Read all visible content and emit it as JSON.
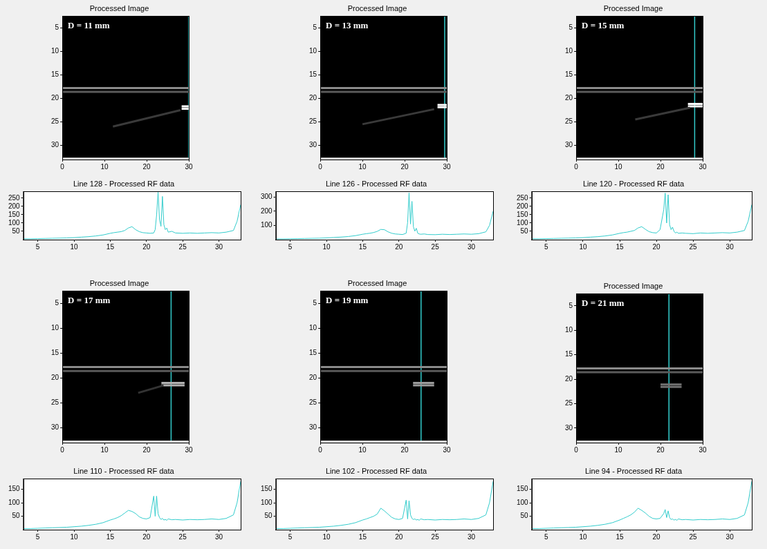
{
  "chart_data": [
    {
      "type": "image",
      "title": "Processed Image",
      "annotation": "D = 11 mm",
      "xlim": [
        0,
        30
      ],
      "xticks": [
        0,
        10,
        20,
        30
      ],
      "ylim": [
        33,
        2.5
      ],
      "yticks": [
        5,
        10,
        15,
        20,
        25,
        30
      ],
      "series": [
        {
          "x": [
            0,
            30
          ],
          "values": [
            17.8,
            17.8
          ],
          "color": "#8a8a8a"
        },
        {
          "x": [
            0,
            30
          ],
          "values": [
            18.6,
            18.6
          ],
          "color": "#5a5a5a"
        },
        {
          "x": [
            12,
            28
          ],
          "values": [
            26,
            22.5
          ],
          "color": "#3a3a3a"
        },
        {
          "x": [
            28.3,
            30
          ],
          "values": [
            21.7,
            21.7
          ],
          "color": "#ffffff"
        },
        {
          "x": [
            28.3,
            30
          ],
          "values": [
            22.2,
            22.2
          ],
          "color": "#ffffff"
        },
        {
          "x": [
            0,
            30
          ],
          "values": [
            32.8,
            32.8
          ],
          "color": "#e0e0e0"
        },
        {
          "x": [
            30,
            30
          ],
          "values": [
            2.5,
            33
          ],
          "color": "#33cccc"
        }
      ]
    },
    {
      "type": "image",
      "title": "Processed Image",
      "annotation": "D = 13 mm",
      "xlim": [
        0,
        30
      ],
      "xticks": [
        0,
        10,
        20,
        30
      ],
      "ylim": [
        33,
        2.5
      ],
      "yticks": [
        5,
        10,
        15,
        20,
        25,
        30
      ],
      "series": [
        {
          "x": [
            0,
            30
          ],
          "values": [
            17.8,
            17.8
          ],
          "color": "#8a8a8a"
        },
        {
          "x": [
            0,
            30
          ],
          "values": [
            18.6,
            18.6
          ],
          "color": "#5a5a5a"
        },
        {
          "x": [
            10,
            27
          ],
          "values": [
            25.5,
            22.3
          ],
          "color": "#3a3a3a"
        },
        {
          "x": [
            27.8,
            30
          ],
          "values": [
            21.4,
            21.4
          ],
          "color": "#ffffff"
        },
        {
          "x": [
            27.8,
            30
          ],
          "values": [
            21.9,
            21.9
          ],
          "color": "#ffffff"
        },
        {
          "x": [
            0,
            30
          ],
          "values": [
            32.8,
            32.8
          ],
          "color": "#e0e0e0"
        },
        {
          "x": [
            29.5,
            29.5
          ],
          "values": [
            2.5,
            33
          ],
          "color": "#33cccc"
        }
      ]
    },
    {
      "type": "image",
      "title": "Processed Image",
      "annotation": "D = 15 mm",
      "xlim": [
        0,
        30
      ],
      "xticks": [
        0,
        10,
        20,
        30
      ],
      "ylim": [
        33,
        2.5
      ],
      "yticks": [
        5,
        10,
        15,
        20,
        25,
        30
      ],
      "series": [
        {
          "x": [
            0,
            30
          ],
          "values": [
            17.8,
            17.8
          ],
          "color": "#8a8a8a"
        },
        {
          "x": [
            0,
            30
          ],
          "values": [
            18.6,
            18.6
          ],
          "color": "#5a5a5a"
        },
        {
          "x": [
            14,
            27
          ],
          "values": [
            24.5,
            22
          ],
          "color": "#3a3a3a"
        },
        {
          "x": [
            26.5,
            30
          ],
          "values": [
            21.2,
            21.2
          ],
          "color": "#ffffff"
        },
        {
          "x": [
            26.5,
            30
          ],
          "values": [
            21.7,
            21.7
          ],
          "color": "#ffffff"
        },
        {
          "x": [
            0,
            30
          ],
          "values": [
            32.8,
            32.8
          ],
          "color": "#e0e0e0"
        },
        {
          "x": [
            28.1,
            28.1
          ],
          "values": [
            2.5,
            33
          ],
          "color": "#33cccc"
        }
      ]
    },
    {
      "type": "line",
      "title": "Line 128 - Processed RF data",
      "color": "#33cccc",
      "xlim": [
        3,
        33
      ],
      "xticks": [
        5,
        10,
        15,
        20,
        25,
        30
      ],
      "ylim": [
        0,
        290
      ],
      "yticks": [
        50,
        100,
        150,
        200,
        250
      ],
      "x": [
        3,
        4,
        5,
        6,
        7,
        8,
        9,
        10,
        11,
        12,
        13,
        14,
        15,
        15.5,
        16,
        16.5,
        17,
        17.5,
        18,
        18.5,
        19,
        19.5,
        20,
        20.5,
        21,
        21.2,
        21.4,
        21.6,
        21.8,
        22,
        22.2,
        22.4,
        22.6,
        22.8,
        23,
        23.5,
        24,
        25,
        26,
        27,
        28,
        29,
        30,
        31,
        32,
        32.5,
        33
      ],
      "values": [
        5,
        5,
        6,
        7,
        8,
        9,
        10,
        12,
        15,
        18,
        22,
        28,
        38,
        42,
        45,
        48,
        55,
        70,
        78,
        60,
        48,
        42,
        40,
        38,
        40,
        60,
        150,
        285,
        120,
        80,
        260,
        90,
        60,
        70,
        45,
        50,
        40,
        38,
        40,
        38,
        40,
        42,
        40,
        45,
        55,
        110,
        210
      ]
    },
    {
      "type": "line",
      "title": "Line 126 - Processed RF data",
      "color": "#33cccc",
      "xlim": [
        3,
        33
      ],
      "xticks": [
        5,
        10,
        15,
        20,
        25,
        30
      ],
      "ylim": [
        0,
        340
      ],
      "yticks": [
        100,
        200,
        300
      ],
      "x": [
        3,
        4,
        5,
        6,
        7,
        8,
        9,
        10,
        11,
        12,
        13,
        14,
        15,
        15.5,
        16,
        16.5,
        17,
        17.5,
        18,
        18.5,
        19,
        19.5,
        20,
        20.5,
        21,
        21.2,
        21.4,
        21.6,
        21.8,
        22,
        22.2,
        22.4,
        22.6,
        22.8,
        23,
        23.5,
        24,
        25,
        26,
        27,
        28,
        29,
        30,
        31,
        32,
        32.5,
        33
      ],
      "values": [
        5,
        5,
        6,
        7,
        8,
        9,
        10,
        12,
        15,
        18,
        22,
        28,
        38,
        42,
        45,
        50,
        58,
        72,
        70,
        55,
        45,
        40,
        38,
        36,
        45,
        120,
        330,
        110,
        270,
        90,
        60,
        80,
        45,
        40,
        38,
        40,
        36,
        35,
        38,
        36,
        38,
        40,
        38,
        42,
        55,
        100,
        200
      ]
    },
    {
      "type": "line",
      "title": "Line 120 - Processed RF data",
      "color": "#33cccc",
      "xlim": [
        3,
        33
      ],
      "xticks": [
        5,
        10,
        15,
        20,
        25,
        30
      ],
      "ylim": [
        0,
        290
      ],
      "yticks": [
        50,
        100,
        150,
        200,
        250
      ],
      "x": [
        3,
        4,
        5,
        6,
        7,
        8,
        9,
        10,
        11,
        12,
        13,
        14,
        15,
        15.5,
        16,
        16.5,
        17,
        17.5,
        18,
        18.5,
        19,
        19.5,
        20,
        20.5,
        21,
        21.2,
        21.4,
        21.6,
        21.8,
        22,
        22.2,
        22.4,
        22.6,
        22.8,
        23,
        23.5,
        24,
        25,
        26,
        27,
        28,
        29,
        30,
        31,
        32,
        32.5,
        33
      ],
      "values": [
        5,
        5,
        6,
        7,
        8,
        9,
        10,
        12,
        15,
        18,
        22,
        28,
        38,
        42,
        45,
        50,
        55,
        70,
        78,
        62,
        48,
        42,
        40,
        60,
        180,
        280,
        100,
        270,
        90,
        60,
        75,
        50,
        40,
        45,
        38,
        40,
        38,
        36,
        40,
        38,
        40,
        42,
        40,
        45,
        55,
        110,
        210
      ]
    },
    {
      "type": "image",
      "title": "Processed Image",
      "annotation": "D = 17 mm",
      "xlim": [
        0,
        30
      ],
      "xticks": [
        0,
        10,
        20,
        30
      ],
      "ylim": [
        33,
        2.5
      ],
      "yticks": [
        5,
        10,
        15,
        20,
        25,
        30
      ],
      "series": [
        {
          "x": [
            0,
            30
          ],
          "values": [
            17.8,
            17.8
          ],
          "color": "#8a8a8a"
        },
        {
          "x": [
            0,
            30
          ],
          "values": [
            18.6,
            18.6
          ],
          "color": "#5a5a5a"
        },
        {
          "x": [
            18,
            24
          ],
          "values": [
            23,
            21.5
          ],
          "color": "#333333"
        },
        {
          "x": [
            23.5,
            29
          ],
          "values": [
            21.0,
            21.0
          ],
          "color": "#b0b0b0"
        },
        {
          "x": [
            23.5,
            29
          ],
          "values": [
            21.5,
            21.5
          ],
          "color": "#b0b0b0"
        },
        {
          "x": [
            0,
            30
          ],
          "values": [
            32.8,
            32.8
          ],
          "color": "#e0e0e0"
        },
        {
          "x": [
            25.8,
            25.8
          ],
          "values": [
            2.5,
            33
          ],
          "color": "#33cccc"
        }
      ]
    },
    {
      "type": "image",
      "title": "Processed Image",
      "annotation": "D = 19 mm",
      "xlim": [
        0,
        30
      ],
      "xticks": [
        0,
        10,
        20,
        30
      ],
      "ylim": [
        33,
        2.5
      ],
      "yticks": [
        5,
        10,
        15,
        20,
        25,
        30
      ],
      "series": [
        {
          "x": [
            0,
            30
          ],
          "values": [
            17.8,
            17.8
          ],
          "color": "#8a8a8a"
        },
        {
          "x": [
            0,
            30
          ],
          "values": [
            18.6,
            18.6
          ],
          "color": "#5a5a5a"
        },
        {
          "x": [
            22,
            27
          ],
          "values": [
            21.0,
            21.0
          ],
          "color": "#9a9a9a"
        },
        {
          "x": [
            22,
            27
          ],
          "values": [
            21.5,
            21.5
          ],
          "color": "#9a9a9a"
        },
        {
          "x": [
            0,
            30
          ],
          "values": [
            32.8,
            32.8
          ],
          "color": "#e0e0e0"
        },
        {
          "x": [
            23.9,
            23.9
          ],
          "values": [
            2.5,
            33
          ],
          "color": "#33cccc"
        }
      ]
    },
    {
      "type": "image",
      "title": "Processed Image",
      "annotation": "D = 21 mm",
      "xlim": [
        0,
        30
      ],
      "xticks": [
        0,
        10,
        20,
        30
      ],
      "ylim": [
        33,
        2.5
      ],
      "yticks": [
        5,
        10,
        15,
        20,
        25,
        30
      ],
      "series": [
        {
          "x": [
            0,
            30
          ],
          "values": [
            17.8,
            17.8
          ],
          "color": "#8a8a8a"
        },
        {
          "x": [
            0,
            30
          ],
          "values": [
            18.6,
            18.6
          ],
          "color": "#5a5a5a"
        },
        {
          "x": [
            20,
            25
          ],
          "values": [
            21.1,
            21.1
          ],
          "color": "#707070"
        },
        {
          "x": [
            20,
            25
          ],
          "values": [
            21.6,
            21.6
          ],
          "color": "#707070"
        },
        {
          "x": [
            0,
            30
          ],
          "values": [
            32.8,
            32.8
          ],
          "color": "#e0e0e0"
        },
        {
          "x": [
            22.0,
            22.0
          ],
          "values": [
            2.5,
            33
          ],
          "color": "#33cccc"
        }
      ]
    },
    {
      "type": "line",
      "title": "Line 110 - Processed RF data",
      "color": "#33cccc",
      "xlim": [
        3,
        33
      ],
      "xticks": [
        5,
        10,
        15,
        20,
        25,
        30
      ],
      "ylim": [
        0,
        190
      ],
      "yticks": [
        50,
        100,
        150
      ],
      "x": [
        3,
        4,
        5,
        6,
        7,
        8,
        9,
        10,
        11,
        12,
        13,
        14,
        15,
        15.5,
        16,
        16.5,
        17,
        17.5,
        18,
        18.5,
        19,
        19.5,
        20,
        20.5,
        21,
        21.2,
        21.4,
        21.6,
        21.8,
        22,
        22.2,
        22.4,
        22.6,
        22.8,
        23,
        23.5,
        24,
        25,
        26,
        27,
        28,
        29,
        30,
        31,
        32,
        32.5,
        33
      ],
      "values": [
        4,
        4,
        5,
        6,
        7,
        8,
        9,
        11,
        13,
        16,
        20,
        26,
        36,
        40,
        45,
        52,
        62,
        72,
        68,
        60,
        48,
        42,
        40,
        45,
        125,
        50,
        125,
        60,
        45,
        38,
        42,
        36,
        38,
        35,
        40,
        37,
        38,
        36,
        38,
        37,
        38,
        40,
        38,
        42,
        55,
        100,
        180
      ]
    },
    {
      "type": "line",
      "title": "Line 102 - Processed RF data",
      "color": "#33cccc",
      "xlim": [
        3,
        33
      ],
      "xticks": [
        5,
        10,
        15,
        20,
        25,
        30
      ],
      "ylim": [
        0,
        190
      ],
      "yticks": [
        50,
        100,
        150
      ],
      "x": [
        3,
        4,
        5,
        6,
        7,
        8,
        9,
        10,
        11,
        12,
        13,
        14,
        15,
        15.5,
        16,
        16.5,
        17,
        17.5,
        18,
        18.5,
        19,
        19.5,
        20,
        20.5,
        21,
        21.2,
        21.4,
        21.6,
        21.8,
        22,
        22.2,
        22.4,
        22.6,
        22.8,
        23,
        23.5,
        24,
        25,
        26,
        27,
        28,
        29,
        30,
        31,
        32,
        32.5,
        33
      ],
      "values": [
        4,
        4,
        5,
        6,
        7,
        8,
        9,
        11,
        13,
        16,
        20,
        26,
        36,
        40,
        45,
        50,
        58,
        80,
        70,
        58,
        46,
        40,
        38,
        42,
        110,
        40,
        108,
        55,
        42,
        38,
        40,
        36,
        38,
        35,
        40,
        37,
        38,
        36,
        38,
        37,
        38,
        40,
        38,
        42,
        55,
        100,
        180
      ]
    },
    {
      "type": "line",
      "title": "Line 94 - Processed RF data",
      "color": "#33cccc",
      "xlim": [
        3,
        33
      ],
      "xticks": [
        5,
        10,
        15,
        20,
        25,
        30
      ],
      "ylim": [
        0,
        190
      ],
      "yticks": [
        50,
        100,
        150
      ],
      "x": [
        3,
        4,
        5,
        6,
        7,
        8,
        9,
        10,
        11,
        12,
        13,
        14,
        15,
        15.5,
        16,
        16.5,
        17,
        17.5,
        18,
        18.5,
        19,
        19.5,
        20,
        20.5,
        21,
        21.2,
        21.4,
        21.6,
        21.8,
        22,
        22.2,
        22.4,
        22.6,
        22.8,
        23,
        23.5,
        24,
        25,
        26,
        27,
        28,
        29,
        30,
        31,
        32,
        32.5,
        33
      ],
      "values": [
        4,
        4,
        5,
        6,
        7,
        8,
        9,
        11,
        13,
        16,
        20,
        26,
        36,
        42,
        48,
        55,
        65,
        80,
        72,
        62,
        50,
        42,
        40,
        42,
        60,
        75,
        45,
        70,
        45,
        38,
        40,
        36,
        38,
        35,
        40,
        37,
        38,
        36,
        38,
        37,
        38,
        40,
        38,
        42,
        55,
        100,
        180
      ]
    }
  ]
}
